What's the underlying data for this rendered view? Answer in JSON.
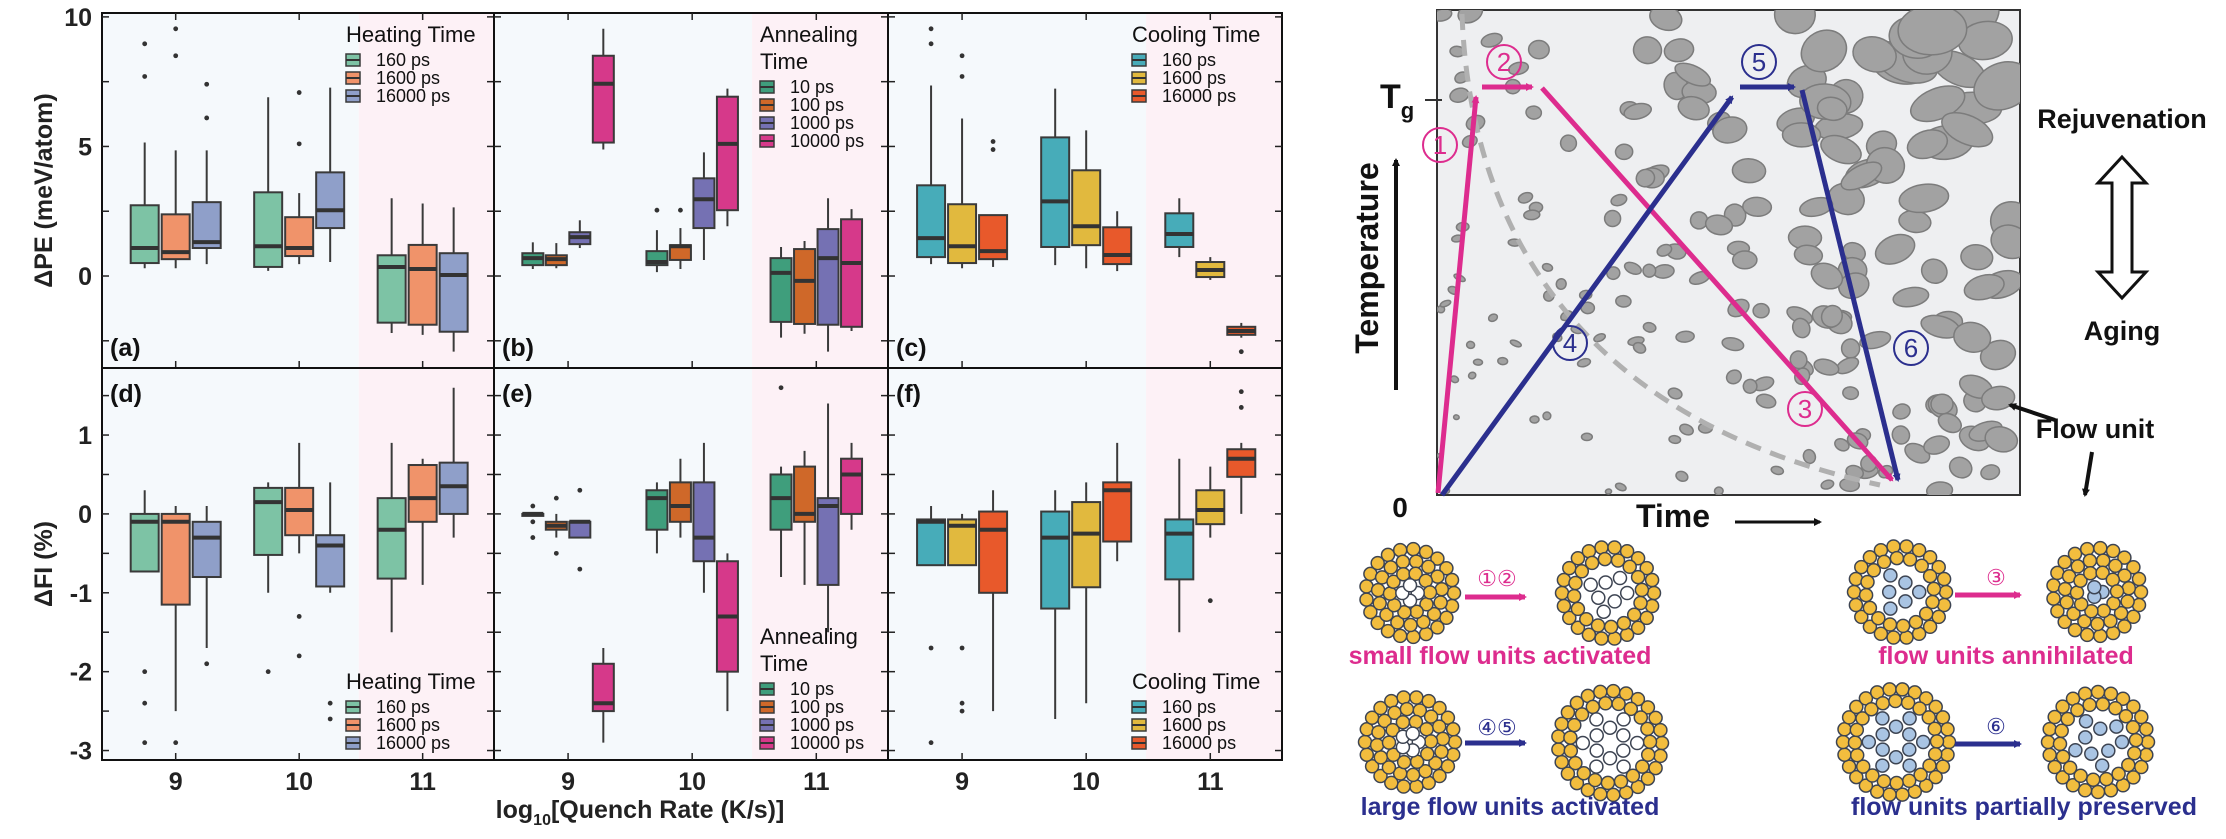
{
  "chart_data": {
    "type": "boxplot-grid",
    "xlabel_main": "log",
    "xlabel_sub": "10",
    "xlabel_rest": "[Quench Rate (K/s)]",
    "categories": [
      "9",
      "10",
      "11"
    ],
    "shading": {
      "low": "#f5f9fc",
      "high": "#fdf1f6"
    },
    "rows": [
      {
        "ylabel": "ΔPE (meV/atom)",
        "ylim": [
          -3.55,
          10.15
        ],
        "yticks": [
          10,
          5,
          0
        ],
        "minor_ticks": [
          7.5,
          2.5,
          -2.5
        ]
      },
      {
        "ylabel": "ΔFI (%)",
        "ylim": [
          -3.12,
          1.85
        ],
        "yticks": [
          1,
          0,
          -1,
          -2,
          -3
        ],
        "minor_ticks": [
          1.5,
          0.5,
          -0.5,
          -1.5,
          -2.5
        ]
      }
    ],
    "panels": [
      {
        "label": "(a)",
        "row": 0,
        "col": 0,
        "legend": {
          "title": [
            "Heating Time"
          ],
          "position": "top-right"
        },
        "series": [
          {
            "name": "160 ps",
            "color": "#7dc3a5",
            "boxes": [
              {
                "q1": 0.5,
                "med": 1.08,
                "q3": 2.73,
                "lo": 0.3,
                "hi": 5.15,
                "out": [
                  8.96,
                  7.7
                ]
              },
              {
                "q1": 0.35,
                "med": 1.15,
                "q3": 3.23,
                "lo": 0.2,
                "hi": 6.9,
                "out": []
              },
              {
                "q1": -1.8,
                "med": 0.35,
                "q3": 0.8,
                "lo": -2.2,
                "hi": 3.0,
                "out": []
              }
            ]
          },
          {
            "name": "1600 ps",
            "color": "#f0936a",
            "boxes": [
              {
                "q1": 0.65,
                "med": 0.92,
                "q3": 2.38,
                "lo": 0.3,
                "hi": 4.85,
                "out": [
                  9.54,
                  8.5
                ]
              },
              {
                "q1": 0.77,
                "med": 1.08,
                "q3": 2.27,
                "lo": 0.46,
                "hi": 3.2,
                "out": [
                  7.08,
                  5.1
                ]
              },
              {
                "q1": -1.88,
                "med": 0.27,
                "q3": 1.2,
                "lo": -2.27,
                "hi": 2.8,
                "out": []
              }
            ]
          },
          {
            "name": "16000 ps",
            "color": "#8f9fc9",
            "boxes": [
              {
                "q1": 1.08,
                "med": 1.31,
                "q3": 2.85,
                "lo": 0.46,
                "hi": 4.85,
                "out": [
                  7.4,
                  6.1
                ]
              },
              {
                "q1": 1.85,
                "med": 2.54,
                "q3": 4.0,
                "lo": 0.54,
                "hi": 7.27,
                "out": []
              },
              {
                "q1": -2.15,
                "med": 0.04,
                "q3": 0.88,
                "lo": -2.92,
                "hi": 2.65,
                "out": []
              }
            ]
          }
        ]
      },
      {
        "label": "(b)",
        "row": 0,
        "col": 1,
        "legend": {
          "title": [
            "Annealing",
            "Time"
          ],
          "position": "top-right"
        },
        "series": [
          {
            "name": "10 ps",
            "color": "#3f9e7c",
            "boxes": [
              {
                "q1": 0.42,
                "med": 0.69,
                "q3": 0.88,
                "lo": 0.27,
                "hi": 1.3,
                "out": []
              },
              {
                "q1": 0.42,
                "med": 0.54,
                "q3": 0.96,
                "lo": 0.15,
                "hi": 1.77,
                "out": [
                  2.54
                ]
              },
              {
                "q1": -1.77,
                "med": 0.12,
                "q3": 0.69,
                "lo": -2.38,
                "hi": 1.12,
                "out": []
              }
            ]
          },
          {
            "name": "100 ps",
            "color": "#cf6829",
            "boxes": [
              {
                "q1": 0.42,
                "med": 0.65,
                "q3": 0.8,
                "lo": 0.3,
                "hi": 1.27,
                "out": []
              },
              {
                "q1": 0.62,
                "med": 1.15,
                "q3": 1.19,
                "lo": 0.27,
                "hi": 1.85,
                "out": [
                  2.54
                ]
              },
              {
                "q1": -1.85,
                "med": -0.19,
                "q3": 1.04,
                "lo": -2.23,
                "hi": 1.35,
                "out": []
              }
            ]
          },
          {
            "name": "1000 ps",
            "color": "#7571b3",
            "boxes": [
              {
                "q1": 1.23,
                "med": 1.5,
                "q3": 1.69,
                "lo": 1.08,
                "hi": 2.15,
                "out": []
              },
              {
                "q1": 1.85,
                "med": 2.96,
                "q3": 3.77,
                "lo": 0.62,
                "hi": 4.77,
                "out": []
              },
              {
                "q1": -1.88,
                "med": 0.69,
                "q3": 1.81,
                "lo": -2.92,
                "hi": 3.0,
                "out": []
              }
            ]
          },
          {
            "name": "10000 ps",
            "color": "#d6398a",
            "boxes": [
              {
                "q1": 5.15,
                "med": 7.42,
                "q3": 8.5,
                "lo": 4.88,
                "hi": 9.54,
                "out": []
              },
              {
                "q1": 2.54,
                "med": 5.1,
                "q3": 6.92,
                "lo": 1.92,
                "hi": 7.23,
                "out": []
              },
              {
                "q1": -1.96,
                "med": 0.5,
                "q3": 2.19,
                "lo": -2.12,
                "hi": 2.58,
                "out": []
              }
            ]
          }
        ]
      },
      {
        "label": "(c)",
        "row": 0,
        "col": 2,
        "legend": {
          "title": [
            "Cooling Time"
          ],
          "position": "top-right"
        },
        "series": [
          {
            "name": "160 ps",
            "color": "#47acb9",
            "boxes": [
              {
                "q1": 0.73,
                "med": 1.46,
                "q3": 3.5,
                "lo": 0.46,
                "hi": 7.35,
                "out": [
                  9.54,
                  8.96
                ]
              },
              {
                "q1": 1.12,
                "med": 2.88,
                "q3": 5.35,
                "lo": 0.42,
                "hi": 7.23,
                "out": []
              },
              {
                "q1": 1.12,
                "med": 1.62,
                "q3": 2.42,
                "lo": 0.73,
                "hi": 3.0,
                "out": []
              }
            ]
          },
          {
            "name": "1600 ps",
            "color": "#e1b93e",
            "boxes": [
              {
                "q1": 0.5,
                "med": 1.15,
                "q3": 2.77,
                "lo": 0.3,
                "hi": 6.08,
                "out": [
                  8.5,
                  7.7
                ]
              },
              {
                "q1": 1.19,
                "med": 1.92,
                "q3": 4.08,
                "lo": 0.3,
                "hi": 5.62,
                "out": []
              },
              {
                "q1": -0.04,
                "med": 0.23,
                "q3": 0.54,
                "lo": -0.15,
                "hi": 0.73,
                "out": []
              }
            ]
          },
          {
            "name": "16000 ps",
            "color": "#e8592b",
            "boxes": [
              {
                "q1": 0.65,
                "med": 0.96,
                "q3": 2.35,
                "lo": 0.35,
                "hi": 2.35,
                "out": [
                  5.19,
                  4.88
                ]
              },
              {
                "q1": 0.46,
                "med": 0.81,
                "q3": 1.88,
                "lo": 0.19,
                "hi": 2.5,
                "out": []
              },
              {
                "q1": -2.27,
                "med": -2.12,
                "q3": -1.96,
                "lo": -2.38,
                "hi": -1.81,
                "out": [
                  -2.92
                ]
              }
            ]
          }
        ]
      },
      {
        "label": "(d)",
        "row": 1,
        "col": 0,
        "legend": {
          "title": [
            "Heating Time"
          ],
          "position": "bottom-right"
        },
        "series": [
          {
            "name": "160 ps",
            "color": "#7dc3a5",
            "boxes": [
              {
                "q1": -0.73,
                "med": -0.1,
                "q3": 0.0,
                "lo": -0.73,
                "hi": 0.3,
                "out": [
                  -2.0,
                  -2.4,
                  -2.9
                ]
              },
              {
                "q1": -0.52,
                "med": 0.15,
                "q3": 0.33,
                "lo": -1.0,
                "hi": 0.4,
                "out": [
                  -2.0
                ]
              },
              {
                "q1": -0.82,
                "med": -0.2,
                "q3": 0.2,
                "lo": -1.5,
                "hi": 0.9,
                "out": []
              }
            ]
          },
          {
            "name": "1600 ps",
            "color": "#f0936a",
            "boxes": [
              {
                "q1": -1.15,
                "med": -0.1,
                "q3": 0.0,
                "lo": -2.5,
                "hi": 0.1,
                "out": [
                  -2.9
                ]
              },
              {
                "q1": -0.27,
                "med": 0.05,
                "q3": 0.33,
                "lo": -0.5,
                "hi": 0.9,
                "out": [
                  -1.3,
                  -1.8
                ]
              },
              {
                "q1": -0.1,
                "med": 0.2,
                "q3": 0.62,
                "lo": -0.9,
                "hi": 0.7,
                "out": []
              }
            ]
          },
          {
            "name": "16000 ps",
            "color": "#8f9fc9",
            "boxes": [
              {
                "q1": -0.8,
                "med": -0.3,
                "q3": -0.1,
                "lo": -1.7,
                "hi": 0.1,
                "out": [
                  -1.9
                ]
              },
              {
                "q1": -0.92,
                "med": -0.4,
                "q3": -0.27,
                "lo": -1.0,
                "hi": 0.4,
                "out": [
                  -2.4,
                  -2.6
                ]
              },
              {
                "q1": 0.0,
                "med": 0.35,
                "q3": 0.65,
                "lo": -0.3,
                "hi": 1.6,
                "out": []
              }
            ]
          }
        ]
      },
      {
        "label": "(e)",
        "row": 1,
        "col": 1,
        "legend": {
          "title": [
            "Annealing",
            "Time"
          ],
          "position": "bottom-right"
        },
        "series": [
          {
            "name": "10 ps",
            "color": "#3f9e7c",
            "boxes": [
              {
                "q1": 0.0,
                "med": 0.0,
                "q3": 0.0,
                "lo": 0.0,
                "hi": 0.0,
                "out": [
                  0.1,
                  -0.1,
                  -0.3
                ]
              },
              {
                "q1": -0.2,
                "med": 0.2,
                "q3": 0.3,
                "lo": -0.5,
                "hi": 0.4,
                "out": []
              },
              {
                "q1": -0.2,
                "med": 0.2,
                "q3": 0.5,
                "lo": -0.8,
                "hi": 0.6,
                "out": [
                  1.6
                ]
              }
            ]
          },
          {
            "name": "100 ps",
            "color": "#cf6829",
            "boxes": [
              {
                "q1": -0.2,
                "med": -0.15,
                "q3": -0.1,
                "lo": -0.3,
                "hi": 0.0,
                "out": [
                  0.2,
                  -0.5
                ]
              },
              {
                "q1": -0.1,
                "med": 0.1,
                "q3": 0.4,
                "lo": -0.3,
                "hi": 0.7,
                "out": []
              },
              {
                "q1": -0.1,
                "med": 0.0,
                "q3": 0.6,
                "lo": -0.9,
                "hi": 0.8,
                "out": []
              }
            ]
          },
          {
            "name": "1000 ps",
            "color": "#7571b3",
            "boxes": [
              {
                "q1": -0.3,
                "med": -0.1,
                "q3": -0.1,
                "lo": -0.3,
                "hi": -0.1,
                "out": [
                  0.3,
                  -0.7
                ]
              },
              {
                "q1": -0.6,
                "med": -0.3,
                "q3": 0.4,
                "lo": -1.0,
                "hi": 0.9,
                "out": []
              },
              {
                "q1": -0.9,
                "med": 0.1,
                "q3": 0.2,
                "lo": -1.5,
                "hi": 1.4,
                "out": []
              }
            ]
          },
          {
            "name": "10000 ps",
            "color": "#d6398a",
            "boxes": [
              {
                "q1": -2.5,
                "med": -2.4,
                "q3": -1.9,
                "lo": -2.9,
                "hi": -1.7,
                "out": []
              },
              {
                "q1": -2.0,
                "med": -1.3,
                "q3": -0.6,
                "lo": -2.5,
                "hi": -0.5,
                "out": []
              },
              {
                "q1": 0.0,
                "med": 0.5,
                "q3": 0.7,
                "lo": -0.2,
                "hi": 0.9,
                "out": []
              }
            ]
          }
        ]
      },
      {
        "label": "(f)",
        "row": 1,
        "col": 2,
        "legend": {
          "title": [
            "Cooling Time"
          ],
          "position": "bottom-right"
        },
        "series": [
          {
            "name": "160 ps",
            "color": "#47acb9",
            "boxes": [
              {
                "q1": -0.65,
                "med": -0.1,
                "q3": -0.07,
                "lo": -0.65,
                "hi": 0.1,
                "out": [
                  -1.7,
                  -2.9
                ]
              },
              {
                "q1": -1.2,
                "med": -0.3,
                "q3": 0.03,
                "lo": -2.6,
                "hi": 0.3,
                "out": []
              },
              {
                "q1": -0.83,
                "med": -0.25,
                "q3": -0.07,
                "lo": -1.5,
                "hi": 0.7,
                "out": []
              }
            ]
          },
          {
            "name": "1600 ps",
            "color": "#e1b93e",
            "boxes": [
              {
                "q1": -0.65,
                "med": -0.15,
                "q3": -0.07,
                "lo": -0.65,
                "hi": 0.0,
                "out": [
                  -1.7,
                  -2.4,
                  -2.5
                ]
              },
              {
                "q1": -0.93,
                "med": -0.25,
                "q3": 0.15,
                "lo": -2.4,
                "hi": 0.4,
                "out": []
              },
              {
                "q1": -0.13,
                "med": 0.05,
                "q3": 0.3,
                "lo": -0.3,
                "hi": 0.6,
                "out": [
                  -1.1
                ]
              }
            ]
          },
          {
            "name": "16000 ps",
            "color": "#e8592b",
            "boxes": [
              {
                "q1": -1.0,
                "med": -0.2,
                "q3": 0.03,
                "lo": -2.5,
                "hi": 0.3,
                "out": []
              },
              {
                "q1": -0.35,
                "med": 0.3,
                "q3": 0.4,
                "lo": -0.6,
                "hi": 0.9,
                "out": []
              },
              {
                "q1": 0.47,
                "med": 0.7,
                "q3": 0.82,
                "lo": 0.0,
                "hi": 0.9,
                "out": [
                  1.35,
                  1.55
                ]
              }
            ]
          }
        ]
      }
    ]
  },
  "diagram": {
    "y_axis_label": "Temperature",
    "x_axis_label": "Time",
    "origin_label": "0",
    "tg_label": "T",
    "tg_sub": "g",
    "rejuvenation_label": "Rejuvenation",
    "aging_label": "Aging",
    "flow_unit_label": "Flow unit",
    "colors": {
      "pink": "#dd2c8e",
      "navy": "#2b2f8e",
      "background": "#eeeff1",
      "particle": "#a2a2a2",
      "gold": "#f2bd3e",
      "blue_atom": "#a9c4e3"
    },
    "step_labels": {
      "s1": "①",
      "s2": "②",
      "s3": "③",
      "s4": "④",
      "s5": "⑤",
      "s6": "⑥"
    },
    "transitions": [
      {
        "steps": "①②",
        "caption": "small flow units activated",
        "color": "pink"
      },
      {
        "steps": "④⑤",
        "caption": "large flow units activated",
        "color": "navy"
      },
      {
        "steps": "③",
        "caption": "flow units annihilated",
        "color": "pink"
      },
      {
        "steps": "⑥",
        "caption": "flow units partially preserved",
        "color": "navy"
      }
    ]
  }
}
